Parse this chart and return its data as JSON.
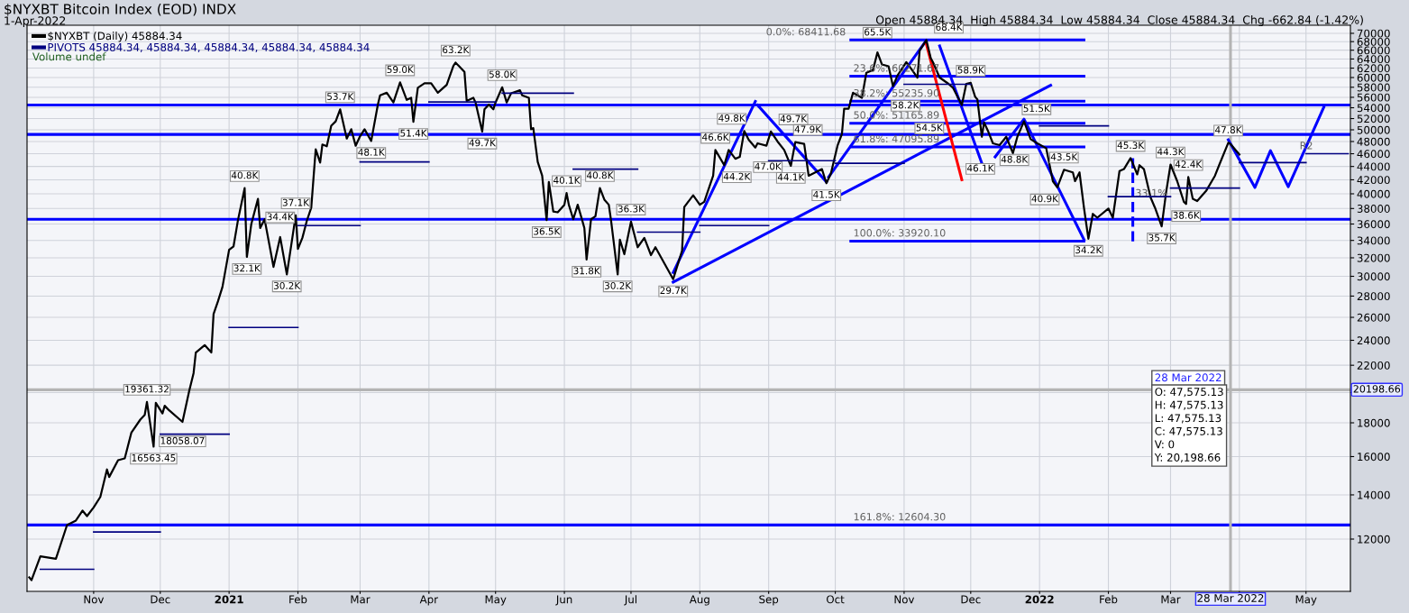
{
  "chart_data": {
    "type": "line",
    "title": "$NYXBT Bitcoin Index (EOD) INDX",
    "subtitle": "1-Apr-2022",
    "log": "y",
    "grid": true,
    "legend": "top left",
    "marker": "none",
    "xlim": [
      "2020-10-02",
      "2022-05-21"
    ],
    "xticks": [
      {
        "value": "2020-11-01",
        "label": "Nov"
      },
      {
        "value": "2020-12-01",
        "label": "Dec"
      },
      {
        "value": "2021-01-01",
        "label": "2021"
      },
      {
        "value": "2021-02-01",
        "label": "Feb"
      },
      {
        "value": "2021-03-01",
        "label": "Mar"
      },
      {
        "value": "2021-04-01",
        "label": "Apr"
      },
      {
        "value": "2021-05-01",
        "label": "May"
      },
      {
        "value": "2021-06-01",
        "label": "Jun"
      },
      {
        "value": "2021-07-01",
        "label": "Jul"
      },
      {
        "value": "2021-08-01",
        "label": "Aug"
      },
      {
        "value": "2021-09-01",
        "label": "Sep"
      },
      {
        "value": "2021-10-01",
        "label": "Oct"
      },
      {
        "value": "2021-11-01",
        "label": "Nov"
      },
      {
        "value": "2021-12-01",
        "label": "Dec"
      },
      {
        "value": "2022-01-01",
        "label": "2022"
      },
      {
        "value": "2022-02-01",
        "label": "Feb"
      },
      {
        "value": "2022-03-01",
        "label": "Mar"
      },
      {
        "value": "2022-04-01",
        "label": null
      },
      {
        "value": "2022-05-01",
        "label": "May"
      }
    ],
    "ylim": [
      10000,
      72000
    ],
    "yticks": [
      12000,
      14000,
      16000,
      18000,
      {
        "value": 20000,
        "label": null
      },
      22000,
      24000,
      26000,
      28000,
      30000,
      32000,
      34000,
      36000,
      38000,
      40000,
      42000,
      44000,
      46000,
      48000,
      50000,
      52000,
      54000,
      56000,
      58000,
      60000,
      62000,
      64000,
      66000,
      68000,
      70000
    ],
    "series": [
      {
        "name": "$NYXBT (Daily) 45884.34",
        "color": "#000000",
        "line_style": "solid",
        "x": [
          "2020-10-03",
          "2020-10-04",
          "2020-10-08",
          "2020-10-15",
          "2020-10-20",
          "2020-10-24",
          "2020-10-27",
          "2020-10-29",
          "2020-11-01",
          "2020-11-04",
          "2020-11-07",
          "2020-11-08",
          "2020-11-12",
          "2020-11-15",
          "2020-11-18",
          "2020-11-22",
          "2020-11-24",
          "2020-11-25",
          "2020-11-28",
          "2020-11-29",
          "2020-12-02",
          "2020-12-03",
          "2020-12-05",
          "2020-12-11",
          "2020-12-14",
          "2020-12-16",
          "2020-12-17",
          "2020-12-21",
          "2020-12-24",
          "2020-12-25",
          "2020-12-27",
          "2020-12-29",
          "2021-01-01",
          "2021-01-03",
          "2021-01-05",
          "2021-01-08",
          "2021-01-09",
          "2021-01-11",
          "2021-01-14",
          "2021-01-15",
          "2021-01-17",
          "2021-01-21",
          "2021-01-24",
          "2021-01-27",
          "2021-01-31",
          "2021-02-01",
          "2021-02-03",
          "2021-02-05",
          "2021-02-07",
          "2021-02-08",
          "2021-02-09",
          "2021-02-11",
          "2021-02-12",
          "2021-02-14",
          "2021-02-16",
          "2021-02-18",
          "2021-02-20",
          "2021-02-23",
          "2021-02-25",
          "2021-02-27",
          "2021-03-01",
          "2021-03-03",
          "2021-03-06",
          "2021-03-09",
          "2021-03-10",
          "2021-03-13",
          "2021-03-16",
          "2021-03-19",
          "2021-03-22",
          "2021-03-24",
          "2021-03-25",
          "2021-03-27",
          "2021-03-30",
          "2021-04-02",
          "2021-04-05",
          "2021-04-09",
          "2021-04-12",
          "2021-04-13",
          "2021-04-17",
          "2021-04-18",
          "2021-04-21",
          "2021-04-22",
          "2021-04-25",
          "2021-04-26",
          "2021-04-28",
          "2021-04-30",
          "2021-05-01",
          "2021-05-04",
          "2021-05-06",
          "2021-05-08",
          "2021-05-12",
          "2021-05-13",
          "2021-05-16",
          "2021-05-17",
          "2021-05-18",
          "2021-05-20",
          "2021-05-22",
          "2021-05-24",
          "2021-05-25",
          "2021-05-27",
          "2021-05-29",
          "2021-06-01",
          "2021-06-02",
          "2021-06-03",
          "2021-06-05",
          "2021-06-07",
          "2021-06-09",
          "2021-06-10",
          "2021-06-11",
          "2021-06-13",
          "2021-06-15",
          "2021-06-17",
          "2021-06-19",
          "2021-06-21",
          "2021-06-22",
          "2021-06-25",
          "2021-06-26",
          "2021-06-28",
          "2021-07-01",
          "2021-07-04",
          "2021-07-07",
          "2021-07-10",
          "2021-07-12",
          "2021-07-16",
          "2021-07-20",
          "2021-07-24",
          "2021-07-25",
          "2021-07-29",
          "2021-08-01",
          "2021-08-03",
          "2021-08-07",
          "2021-08-08",
          "2021-08-12",
          "2021-08-14",
          "2021-08-17",
          "2021-08-19",
          "2021-08-21",
          "2021-08-23",
          "2021-08-26",
          "2021-08-27",
          "2021-08-31",
          "2021-09-02",
          "2021-09-05",
          "2021-09-08",
          "2021-09-11",
          "2021-09-13",
          "2021-09-17",
          "2021-09-19",
          "2021-09-22",
          "2021-09-25",
          "2021-09-27",
          "2021-09-29",
          "2021-10-02",
          "2021-10-04",
          "2021-10-05",
          "2021-10-07",
          "2021-10-09",
          "2021-10-13",
          "2021-10-15",
          "2021-10-18",
          "2021-10-20",
          "2021-10-22",
          "2021-10-25",
          "2021-10-27",
          "2021-10-29",
          "2021-11-02",
          "2021-11-04",
          "2021-11-07",
          "2021-11-08",
          "2021-11-11",
          "2021-11-13",
          "2021-11-14",
          "2021-11-17",
          "2021-11-21",
          "2021-11-23",
          "2021-11-27",
          "2021-11-29",
          "2021-12-01",
          "2021-12-03",
          "2021-12-04",
          "2021-12-06",
          "2021-12-07",
          "2021-12-09",
          "2021-12-11",
          "2021-12-14",
          "2021-12-17",
          "2021-12-20",
          "2021-12-22",
          "2021-12-25",
          "2021-12-28",
          "2021-12-31",
          "2022-01-04",
          "2022-01-07",
          "2022-01-09",
          "2022-01-12",
          "2022-01-16",
          "2022-01-17",
          "2022-01-19",
          "2022-01-21",
          "2022-01-23",
          "2022-01-25",
          "2022-01-27",
          "2022-02-01",
          "2022-02-03",
          "2022-02-06",
          "2022-02-08",
          "2022-02-11",
          "2022-02-14",
          "2022-02-15",
          "2022-02-17",
          "2022-02-20",
          "2022-02-22",
          "2022-02-25",
          "2022-02-27",
          "2022-03-01",
          "2022-03-04",
          "2022-03-07",
          "2022-03-08",
          "2022-03-09",
          "2022-03-11",
          "2022-03-13",
          "2022-03-17",
          "2022-03-21",
          "2022-03-23",
          "2022-03-27",
          "2022-03-28",
          "2022-04-01"
        ],
        "values": [
          10500,
          10400,
          11300,
          11200,
          12600,
          12800,
          13250,
          13000,
          13400,
          13900,
          15300,
          14900,
          15800,
          15900,
          17400,
          18200,
          18500,
          19361.32,
          16563.45,
          19300,
          18600,
          19100,
          18800,
          18058.07,
          20100,
          21400,
          23000,
          23600,
          23000,
          26300,
          27500,
          28900,
          32900,
          33300,
          36500,
          40800,
          32100,
          36000,
          39300,
          35500,
          36600,
          31000,
          34400,
          30200,
          37100,
          33000,
          34300,
          36400,
          38100,
          42200,
          46700,
          44600,
          47500,
          47200,
          50700,
          51500,
          53700,
          48500,
          50100,
          47300,
          48900,
          50100,
          48100,
          54600,
          56400,
          56900,
          55000,
          59000,
          55500,
          55900,
          51400,
          57900,
          58800,
          58800,
          56900,
          58500,
          62500,
          63200,
          61200,
          55300,
          55900,
          55000,
          49700,
          53700,
          54600,
          53700,
          55000,
          58000,
          55000,
          56800,
          57400,
          56400,
          55900,
          50100,
          50300,
          44700,
          42600,
          36500,
          41700,
          37600,
          37500,
          38500,
          40100,
          38500,
          36600,
          38500,
          36500,
          35500,
          31800,
          36600,
          37000,
          40800,
          39200,
          38500,
          36500,
          30200,
          34100,
          32400,
          36300,
          33200,
          34300,
          32300,
          33200,
          31400,
          29700,
          32800,
          38200,
          39800,
          38500,
          38900,
          42600,
          46600,
          44200,
          46600,
          45200,
          45500,
          49800,
          48300,
          47000,
          47700,
          47300,
          49700,
          48000,
          46600,
          44100,
          47900,
          47600,
          42600,
          43100,
          43600,
          41500,
          42900,
          47300,
          49300,
          53800,
          53800,
          56900,
          55900,
          61000,
          61600,
          65500,
          62800,
          62400,
          58200,
          60400,
          63300,
          62000,
          60000,
          65900,
          68400,
          64200,
          63300,
          60000,
          58700,
          57900,
          54500,
          58700,
          58900,
          56100,
          55600,
          48800,
          51300,
          49600,
          47700,
          47400,
          48800,
          46100,
          48800,
          51500,
          48400,
          47700,
          46900,
          41800,
          40900,
          43500,
          43100,
          41800,
          43100,
          38100,
          34200,
          37300,
          36800,
          38000,
          36800,
          43300,
          43600,
          45300,
          42800,
          44200,
          43600,
          39500,
          38100,
          35700,
          40200,
          44300,
          41800,
          38900,
          38600,
          42400,
          39300,
          39000,
          40400,
          42600,
          44300,
          47800,
          47575.13,
          45884.34
        ]
      },
      {
        "name": "PIVOTS 45884.34, 45884.34, 45884.34, 45884.34, 45884.34",
        "color": "#000080",
        "line_style": "solid",
        "x": [
          "2020-10-08",
          "2020-11-01"
        ],
        "values": [
          10800,
          10800
        ]
      },
      {
        "color": "#000080",
        "line_style": "solid",
        "x": [
          "2020-11-01",
          "2020-12-01"
        ],
        "values": [
          12300,
          12300
        ]
      },
      {
        "color": "#000080",
        "line_style": "solid",
        "x": [
          "2020-12-01",
          "2021-01-01"
        ],
        "values": [
          17300,
          17300
        ]
      },
      {
        "color": "#000080",
        "line_style": "solid",
        "x": [
          "2021-01-01",
          "2021-02-01"
        ],
        "values": [
          25100,
          25100
        ]
      },
      {
        "color": "#000080",
        "line_style": "solid",
        "x": [
          "2021-02-01",
          "2021-03-01"
        ],
        "values": [
          35800,
          35800
        ]
      },
      {
        "color": "#000080",
        "line_style": "solid",
        "x": [
          "2021-03-01",
          "2021-04-01"
        ],
        "values": [
          44700,
          44700
        ]
      },
      {
        "color": "#000080",
        "line_style": "solid",
        "x": [
          "2021-04-01",
          "2021-05-01"
        ],
        "values": [
          55100,
          55100
        ]
      },
      {
        "color": "#000080",
        "line_style": "solid",
        "x": [
          "2021-05-04",
          "2021-06-05"
        ],
        "values": [
          56800,
          56800
        ]
      },
      {
        "color": "#000080",
        "line_style": "solid",
        "x": [
          "2021-06-05",
          "2021-07-04"
        ],
        "values": [
          43600,
          43600
        ]
      },
      {
        "color": "#000080",
        "line_style": "solid",
        "x": [
          "2021-07-04",
          "2021-08-01"
        ],
        "values": [
          35000,
          35000
        ]
      },
      {
        "color": "#000080",
        "line_style": "solid",
        "x": [
          "2021-08-01",
          "2021-09-01"
        ],
        "values": [
          35800,
          35800
        ]
      },
      {
        "color": "#000080",
        "line_style": "solid",
        "x": [
          "2021-09-01",
          "2021-10-01"
        ],
        "values": [
          44900,
          44900
        ]
      },
      {
        "color": "#000080",
        "line_style": "solid",
        "x": [
          "2021-10-01",
          "2021-11-01"
        ],
        "values": [
          44500,
          44500
        ]
      },
      {
        "color": "#000080",
        "line_style": "solid",
        "x": [
          "2021-11-01",
          "2021-12-01"
        ],
        "values": [
          58600,
          58600
        ]
      },
      {
        "color": "#000080",
        "line_style": "solid",
        "x": [
          "2022-01-01",
          "2022-02-01"
        ],
        "values": [
          50700,
          50700
        ]
      },
      {
        "color": "#000080",
        "line_style": "solid",
        "x": [
          "2022-02-01",
          "2022-03-01"
        ],
        "values": [
          39600,
          39600
        ]
      },
      {
        "color": "#000080",
        "line_style": "solid",
        "x": [
          "2022-03-01",
          "2022-04-01"
        ],
        "values": [
          40800,
          40800
        ]
      },
      {
        "color": "#000080",
        "line_style": "solid",
        "x": [
          "2022-04-01",
          "2022-05-01"
        ],
        "values": [
          44600,
          44600
        ]
      },
      {
        "color": "#000080",
        "line_style": "solid",
        "x": [
          "2022-05-01",
          "2022-05-20"
        ],
        "values": [
          46000,
          46000
        ]
      },
      {
        "color": "#0000ff",
        "line_style": "solid",
        "x": [
          "2021-10-08",
          "2022-01-21"
        ],
        "values": [
          68411.68,
          68411.68
        ]
      },
      {
        "color": "#0000ff",
        "line_style": "solid",
        "x": [
          "2021-10-08",
          "2022-01-21"
        ],
        "values": [
          60271.67,
          60271.67
        ]
      },
      {
        "color": "#0000ff",
        "line_style": "solid",
        "x": [
          "2021-10-08",
          "2022-01-21"
        ],
        "values": [
          55235.9,
          55235.9
        ]
      },
      {
        "color": "#0000ff",
        "line_style": "solid",
        "x": [
          "2021-10-08",
          "2022-01-21"
        ],
        "values": [
          51165.89,
          51165.89
        ]
      },
      {
        "color": "#0000ff",
        "line_style": "solid",
        "x": [
          "2021-10-08",
          "2022-01-21"
        ],
        "values": [
          47095.89,
          47095.89
        ]
      },
      {
        "color": "#0000ff",
        "line_style": "solid",
        "x": [
          "2021-10-08",
          "2022-01-21"
        ],
        "values": [
          33920.1,
          33920.1
        ]
      },
      {
        "color": "#0000ff",
        "line_style": "solid",
        "x": [
          "2021-07-20",
          "2021-08-26"
        ],
        "values": [
          30400,
          55200
        ]
      },
      {
        "color": "#0000ff",
        "line_style": "solid",
        "x": [
          "2021-08-27",
          "2021-09-27"
        ],
        "values": [
          54500,
          41700
        ]
      },
      {
        "color": "#0000ff",
        "line_style": "solid",
        "x": [
          "2021-09-28",
          "2021-11-11"
        ],
        "values": [
          42400,
          68300
        ]
      },
      {
        "color": "#0000ff",
        "line_style": "solid",
        "x": [
          "2021-07-20",
          "2022-01-06"
        ],
        "values": [
          29400,
          58400
        ]
      },
      {
        "color": "#0000ff",
        "line_style": "solid",
        "x": [
          "2021-11-17",
          "2021-12-06"
        ],
        "values": [
          67000,
          44500
        ]
      },
      {
        "color": "#0000ff",
        "line_style": "solid",
        "x": [
          "2021-12-12",
          "2021-12-25",
          "2022-01-21"
        ],
        "values": [
          45500,
          51900,
          34100
        ]
      },
      {
        "color": "#0000ff",
        "line_style": "solid",
        "x": [
          "2022-03-27",
          "2022-04-08",
          "2022-04-15",
          "2022-04-23",
          "2022-05-09"
        ],
        "values": [
          48300,
          40900,
          46500,
          41000,
          54100
        ]
      },
      {
        "color": "#ff0000",
        "line_style": "solid",
        "x": [
          "2021-11-11",
          "2021-11-27"
        ],
        "values": [
          67500,
          42000
        ]
      },
      {
        "color": "#0000ff",
        "line_style": "dashed",
        "x": [
          "2022-02-12",
          "2022-02-12"
        ],
        "values": [
          45300,
          33800
        ]
      }
    ],
    "ref_lines": [
      {
        "axis": "y",
        "value": 54500,
        "color": "#0000ff"
      },
      {
        "axis": "y",
        "value": 49200,
        "color": "#0000ff"
      },
      {
        "axis": "y",
        "value": 36600,
        "color": "#0000ff"
      },
      {
        "axis": "y",
        "value": 12604.3,
        "color": "#0000ff"
      },
      {
        "axis": "y",
        "value": 20198.66,
        "color": "#b4b4b4",
        "label": "20198.66"
      },
      {
        "axis": "x",
        "value": "2022-03-28",
        "color": "#b4b4b4",
        "label": "28 Mar 2022"
      }
    ],
    "annotations": [
      "Open 45884.34  High 45884.34  Low 45884.34  Close 45884.34  Chg -662.84 (-1.42%)",
      "Volume undef",
      "28 Mar 2022",
      "O: 47,575.13\nH: 47,575.13\nL: 47,575.13\nC: 47,575.13\nV: 0\nY: 20,198.66",
      {
        "text": "0.0%: 68411.68",
        "x": "2021-10-08",
        "y": 68411.68
      },
      {
        "text": "23.6%: 60271.67",
        "x": "2021-10-08",
        "y": 60271.67
      },
      {
        "text": "38.2%: 55235.90",
        "x": "2021-10-08",
        "y": 55235.9
      },
      {
        "text": "50.0%: 51165.89",
        "x": "2021-10-08",
        "y": 51165.89
      },
      {
        "text": "61.8%: 47095.89",
        "x": "2021-10-08",
        "y": 47095.89
      },
      {
        "text": "100.0%: 33920.10",
        "x": "2021-10-08",
        "y": 33920.1
      },
      {
        "text": "161.8%: 12604.30",
        "x": "2021-10-08",
        "y": 12604.3
      },
      {
        "text": "33.1%",
        "x": "2022-02-12",
        "y": 39000
      },
      {
        "text": "R2",
        "x": "2022-04-27",
        "y": 46000
      },
      {
        "text": "19361.32",
        "x": "2020-11-25",
        "y": 19361.32
      },
      {
        "text": "16563.45",
        "x": "2020-11-28",
        "y": 16563.45
      },
      {
        "text": "18058.07",
        "x": "2020-12-11",
        "y": 18058.07
      },
      {
        "text": "40.8K",
        "x": "2021-01-08",
        "y": 40800
      },
      {
        "text": "32.1K",
        "x": "2021-01-09",
        "y": 32100
      },
      {
        "text": "34.4K",
        "x": "2021-01-24",
        "y": 34400
      },
      {
        "text": "30.2K",
        "x": "2021-01-27",
        "y": 30200
      },
      {
        "text": "37.1K",
        "x": "2021-01-31",
        "y": 37100
      },
      {
        "text": "53.7K",
        "x": "2021-02-20",
        "y": 53700
      },
      {
        "text": "48.1K",
        "x": "2021-03-06",
        "y": 48100
      },
      {
        "text": "59.0K",
        "x": "2021-03-19",
        "y": 59000
      },
      {
        "text": "51.4K",
        "x": "2021-03-25",
        "y": 51400
      },
      {
        "text": "63.2K",
        "x": "2021-04-13",
        "y": 63200
      },
      {
        "text": "49.7K",
        "x": "2021-04-25",
        "y": 49700
      },
      {
        "text": "58.0K",
        "x": "2021-05-04",
        "y": 58000
      },
      {
        "text": "36.5K",
        "x": "2021-05-24",
        "y": 36500
      },
      {
        "text": "40.1K",
        "x": "2021-06-02",
        "y": 40100
      },
      {
        "text": "31.8K",
        "x": "2021-06-11",
        "y": 31800
      },
      {
        "text": "40.8K",
        "x": "2021-06-17",
        "y": 40800
      },
      {
        "text": "30.2K",
        "x": "2021-06-25",
        "y": 30200
      },
      {
        "text": "36.3K",
        "x": "2021-07-01",
        "y": 36300
      },
      {
        "text": "29.7K",
        "x": "2021-07-20",
        "y": 29700
      },
      {
        "text": "46.6K",
        "x": "2021-08-08",
        "y": 46600
      },
      {
        "text": "44.2K",
        "x": "2021-08-12",
        "y": 44200
      },
      {
        "text": "49.8K",
        "x": "2021-08-21",
        "y": 49800
      },
      {
        "text": "47.0K",
        "x": "2021-08-26",
        "y": 47000
      },
      {
        "text": "49.7K",
        "x": "2021-09-02",
        "y": 49700
      },
      {
        "text": "44.1K",
        "x": "2021-09-11",
        "y": 44100
      },
      {
        "text": "47.9K",
        "x": "2021-09-13",
        "y": 47900
      },
      {
        "text": "41.5K",
        "x": "2021-09-27",
        "y": 41500
      },
      {
        "text": "65.5K",
        "x": "2021-10-20",
        "y": 65500
      },
      {
        "text": "58.2K",
        "x": "2021-10-27",
        "y": 58200
      },
      {
        "text": "68.4K",
        "x": "2021-11-11",
        "y": 68400
      },
      {
        "text": "54.5K",
        "x": "2021-11-27",
        "y": 54500
      },
      {
        "text": "58.9K",
        "x": "2021-12-01",
        "y": 58900
      },
      {
        "text": "48.8K",
        "x": "2021-12-06",
        "y": 48800
      },
      {
        "text": "46.1K",
        "x": "2021-12-20",
        "y": 46100
      },
      {
        "text": "51.5K",
        "x": "2021-12-25",
        "y": 51500
      },
      {
        "text": "40.9K",
        "x": "2022-01-09",
        "y": 40900
      },
      {
        "text": "43.5K",
        "x": "2022-01-12",
        "y": 43500
      },
      {
        "text": "34.2K",
        "x": "2022-01-23",
        "y": 34200
      },
      {
        "text": "45.3K",
        "x": "2022-02-11",
        "y": 45300
      },
      {
        "text": "35.7K",
        "x": "2022-02-25",
        "y": 35700
      },
      {
        "text": "44.3K",
        "x": "2022-03-01",
        "y": 44300
      },
      {
        "text": "38.6K",
        "x": "2022-03-08",
        "y": 38600
      },
      {
        "text": "42.4K",
        "x": "2022-03-09",
        "y": 42400
      },
      {
        "text": "47.8K",
        "x": "2022-03-27",
        "y": 47800
      }
    ]
  }
}
